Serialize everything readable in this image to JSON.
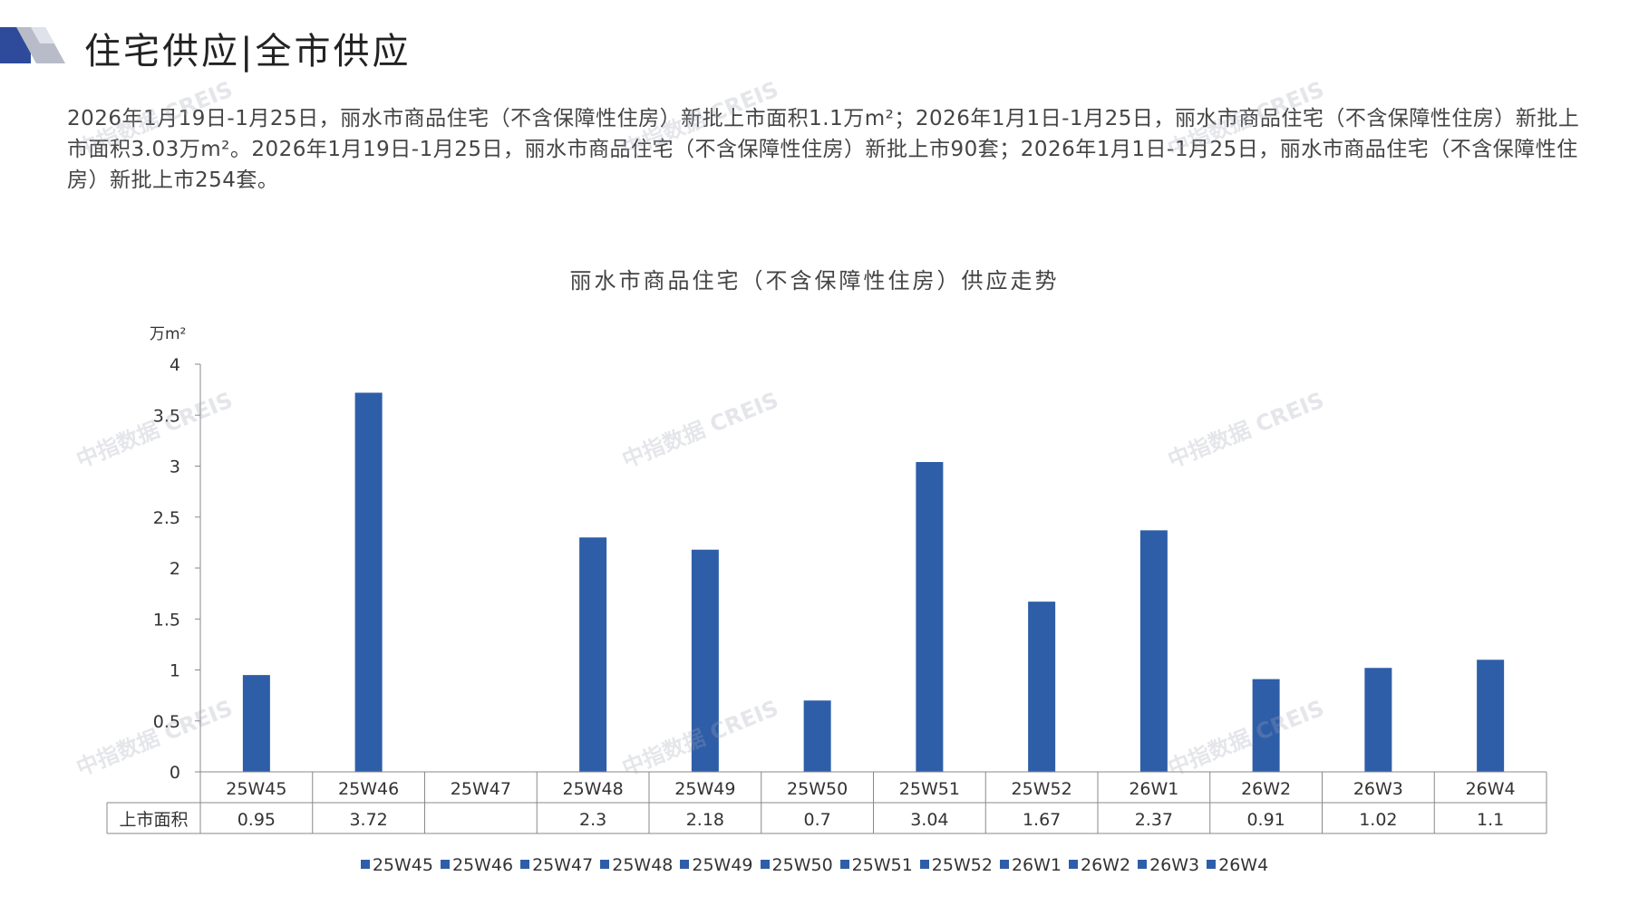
{
  "header": {
    "title": "住宅供应|全市供应"
  },
  "intro": {
    "text": "2026年1月19日-1月25日，丽水市商品住宅（不含保障性住房）新批上市面积1.1万m²；2026年1月1日-1月25日，丽水市商品住宅（不含保障性住房）新批上市面积3.03万m²。2026年1月19日-1月25日，丽水市商品住宅（不含保障性住房）新批上市90套；2026年1月1日-1月25日，丽水市商品住宅（不含保障性住房）新批上市254套。"
  },
  "watermark": "中指数据 CREIS",
  "colors": {
    "bar": "#2e5ea8",
    "logo_dark": "#2e4a9a",
    "logo_light": "#b8bcc8"
  },
  "chart_data": {
    "type": "bar",
    "title": "丽水市商品住宅（不含保障性住房）供应走势",
    "ylabel": "万m²",
    "xlabel": "",
    "ylim": [
      0,
      4
    ],
    "yticks": [
      0,
      0.5,
      1,
      1.5,
      2,
      2.5,
      3,
      3.5,
      4
    ],
    "ytick_labels": [
      "0",
      "0.5",
      "1",
      "1.5",
      "2",
      "2.5",
      "3",
      "3.5",
      "4"
    ],
    "categories": [
      "25W45",
      "25W46",
      "25W47",
      "25W48",
      "25W49",
      "25W50",
      "25W51",
      "25W52",
      "26W1",
      "26W2",
      "26W3",
      "26W4"
    ],
    "series": [
      {
        "name": "上市面积",
        "values": [
          0.95,
          3.72,
          null,
          2.3,
          2.18,
          0.7,
          3.04,
          1.67,
          2.37,
          0.91,
          1.02,
          1.1
        ],
        "labels": [
          "0.95",
          "3.72",
          "",
          "2.3",
          "2.18",
          "0.7",
          "3.04",
          "1.67",
          "2.37",
          "0.91",
          "1.02",
          "1.1"
        ]
      }
    ],
    "legend": [
      "25W45",
      "25W46",
      "25W47",
      "25W48",
      "25W49",
      "25W50",
      "25W51",
      "25W52",
      "26W1",
      "26W2",
      "26W3",
      "26W4"
    ],
    "legend_position": "bottom",
    "data_table": true,
    "grid": false
  }
}
